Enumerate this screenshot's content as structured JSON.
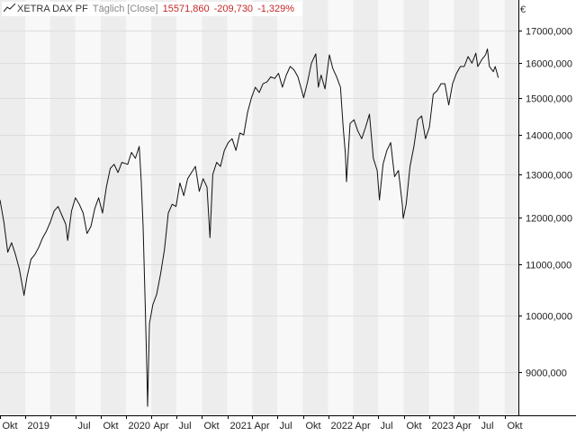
{
  "legend": {
    "name": "XETRA DAX PF",
    "interval": "Täglich [Close]",
    "last": "15571,860",
    "change": "-209,730",
    "change_pct": "-1,329%"
  },
  "currency": "€",
  "colors": {
    "line": "#111111",
    "band_dark": "#ededed",
    "band_light": "#f8f8f8",
    "grid": "#dddddd",
    "axis": "#000000",
    "negative": "#c62828"
  },
  "chart_data": {
    "type": "line",
    "title": "",
    "xlabel": "",
    "ylabel": "",
    "y_scale": "log",
    "ylim": [
      8300,
      18000
    ],
    "xlim": [
      "2018-10-01",
      "2023-11-20"
    ],
    "grid": true,
    "y_ticks": [
      9000,
      10000,
      11000,
      12000,
      13000,
      14000,
      15000,
      16000,
      17000
    ],
    "y_tick_labels": [
      "9000,000",
      "10000,000",
      "11000,000",
      "12000,000",
      "13000,000",
      "14000,000",
      "15000,000",
      "16000,000",
      "17000,000"
    ],
    "x_ticks": [
      {
        "date": "2018-10-01",
        "label": "Okt"
      },
      {
        "date": "2019-01-01",
        "label": "2019"
      },
      {
        "date": "2019-04-01",
        "label": ""
      },
      {
        "date": "2019-07-01",
        "label": "Jul"
      },
      {
        "date": "2019-10-01",
        "label": "Okt"
      },
      {
        "date": "2020-01-01",
        "label": "2020"
      },
      {
        "date": "2020-04-01",
        "label": "Apr"
      },
      {
        "date": "2020-07-01",
        "label": "Jul"
      },
      {
        "date": "2020-10-01",
        "label": "Okt"
      },
      {
        "date": "2021-01-01",
        "label": "2021"
      },
      {
        "date": "2021-04-01",
        "label": "Apr"
      },
      {
        "date": "2021-07-01",
        "label": "Jul"
      },
      {
        "date": "2021-10-01",
        "label": "Okt"
      },
      {
        "date": "2022-01-01",
        "label": "2022"
      },
      {
        "date": "2022-04-01",
        "label": "Apr"
      },
      {
        "date": "2022-07-01",
        "label": "Jul"
      },
      {
        "date": "2022-10-01",
        "label": "Okt"
      },
      {
        "date": "2023-01-01",
        "label": "2023"
      },
      {
        "date": "2023-04-01",
        "label": "Apr"
      },
      {
        "date": "2023-07-01",
        "label": "Jul"
      },
      {
        "date": "2023-10-01",
        "label": "Okt"
      }
    ],
    "series": [
      {
        "values": [
          [
            "2018-10-01",
            12400
          ],
          [
            "2018-10-15",
            11900
          ],
          [
            "2018-10-29",
            11250
          ],
          [
            "2018-11-12",
            11450
          ],
          [
            "2018-11-26",
            11200
          ],
          [
            "2018-12-10",
            10900
          ],
          [
            "2018-12-27",
            10380
          ],
          [
            "2019-01-07",
            10750
          ],
          [
            "2019-01-21",
            11100
          ],
          [
            "2019-02-04",
            11200
          ],
          [
            "2019-02-18",
            11350
          ],
          [
            "2019-03-04",
            11550
          ],
          [
            "2019-03-18",
            11700
          ],
          [
            "2019-04-01",
            11900
          ],
          [
            "2019-04-15",
            12150
          ],
          [
            "2019-04-29",
            12250
          ],
          [
            "2019-05-13",
            12050
          ],
          [
            "2019-05-27",
            11850
          ],
          [
            "2019-06-03",
            11500
          ],
          [
            "2019-06-17",
            12150
          ],
          [
            "2019-07-01",
            12450
          ],
          [
            "2019-07-15",
            12300
          ],
          [
            "2019-07-29",
            12100
          ],
          [
            "2019-08-12",
            11650
          ],
          [
            "2019-08-26",
            11800
          ],
          [
            "2019-09-09",
            12200
          ],
          [
            "2019-09-23",
            12450
          ],
          [
            "2019-10-07",
            12100
          ],
          [
            "2019-10-21",
            12700
          ],
          [
            "2019-11-04",
            13150
          ],
          [
            "2019-11-18",
            13250
          ],
          [
            "2019-12-02",
            13050
          ],
          [
            "2019-12-16",
            13300
          ],
          [
            "2020-01-06",
            13250
          ],
          [
            "2020-01-20",
            13550
          ],
          [
            "2020-02-03",
            13400
          ],
          [
            "2020-02-17",
            13700
          ],
          [
            "2020-02-24",
            12850
          ],
          [
            "2020-03-02",
            11800
          ],
          [
            "2020-03-09",
            10300
          ],
          [
            "2020-03-16",
            8950
          ],
          [
            "2020-03-18",
            8440
          ],
          [
            "2020-03-25",
            9850
          ],
          [
            "2020-04-06",
            10200
          ],
          [
            "2020-04-20",
            10400
          ],
          [
            "2020-05-04",
            10800
          ],
          [
            "2020-05-18",
            11300
          ],
          [
            "2020-06-01",
            12100
          ],
          [
            "2020-06-15",
            12300
          ],
          [
            "2020-06-29",
            12250
          ],
          [
            "2020-07-13",
            12800
          ],
          [
            "2020-07-27",
            12500
          ],
          [
            "2020-08-10",
            12900
          ],
          [
            "2020-08-24",
            13050
          ],
          [
            "2020-09-07",
            13200
          ],
          [
            "2020-09-21",
            12600
          ],
          [
            "2020-10-05",
            12900
          ],
          [
            "2020-10-19",
            12700
          ],
          [
            "2020-10-30",
            11560
          ],
          [
            "2020-11-09",
            13000
          ],
          [
            "2020-11-23",
            13300
          ],
          [
            "2020-12-07",
            13200
          ],
          [
            "2020-12-21",
            13600
          ],
          [
            "2021-01-04",
            13800
          ],
          [
            "2021-01-18",
            13900
          ],
          [
            "2021-02-01",
            13600
          ],
          [
            "2021-02-15",
            14050
          ],
          [
            "2021-03-01",
            14000
          ],
          [
            "2021-03-15",
            14600
          ],
          [
            "2021-03-29",
            15000
          ],
          [
            "2021-04-12",
            15300
          ],
          [
            "2021-04-26",
            15150
          ],
          [
            "2021-05-10",
            15400
          ],
          [
            "2021-05-24",
            15450
          ],
          [
            "2021-06-07",
            15600
          ],
          [
            "2021-06-21",
            15550
          ],
          [
            "2021-07-05",
            15700
          ],
          [
            "2021-07-19",
            15300
          ],
          [
            "2021-08-02",
            15650
          ],
          [
            "2021-08-16",
            15900
          ],
          [
            "2021-08-30",
            15800
          ],
          [
            "2021-09-13",
            15600
          ],
          [
            "2021-09-27",
            15200
          ],
          [
            "2021-10-04",
            15000
          ],
          [
            "2021-10-18",
            15450
          ],
          [
            "2021-11-01",
            16000
          ],
          [
            "2021-11-17",
            16280
          ],
          [
            "2021-11-26",
            15300
          ],
          [
            "2021-12-06",
            15650
          ],
          [
            "2021-12-20",
            15250
          ],
          [
            "2022-01-05",
            16250
          ],
          [
            "2022-01-17",
            15850
          ],
          [
            "2022-01-31",
            15600
          ],
          [
            "2022-02-14",
            15300
          ],
          [
            "2022-02-24",
            14200
          ],
          [
            "2022-03-04",
            13500
          ],
          [
            "2022-03-08",
            12830
          ],
          [
            "2022-03-21",
            14300
          ],
          [
            "2022-04-04",
            14400
          ],
          [
            "2022-04-18",
            14100
          ],
          [
            "2022-05-02",
            13900
          ],
          [
            "2022-05-16",
            14200
          ],
          [
            "2022-05-30",
            14550
          ],
          [
            "2022-06-13",
            13400
          ],
          [
            "2022-06-27",
            13100
          ],
          [
            "2022-07-05",
            12400
          ],
          [
            "2022-07-18",
            13250
          ],
          [
            "2022-08-01",
            13600
          ],
          [
            "2022-08-15",
            13800
          ],
          [
            "2022-08-29",
            12950
          ],
          [
            "2022-09-12",
            13100
          ],
          [
            "2022-09-26",
            12300
          ],
          [
            "2022-09-29",
            11980
          ],
          [
            "2022-10-10",
            12300
          ],
          [
            "2022-10-24",
            13200
          ],
          [
            "2022-11-07",
            13700
          ],
          [
            "2022-11-21",
            14400
          ],
          [
            "2022-12-05",
            14500
          ],
          [
            "2022-12-19",
            13900
          ],
          [
            "2023-01-02",
            14200
          ],
          [
            "2023-01-16",
            15100
          ],
          [
            "2023-01-30",
            15200
          ],
          [
            "2023-02-13",
            15400
          ],
          [
            "2023-02-27",
            15400
          ],
          [
            "2023-03-13",
            14800
          ],
          [
            "2023-03-27",
            15400
          ],
          [
            "2023-04-10",
            15700
          ],
          [
            "2023-04-24",
            15900
          ],
          [
            "2023-05-08",
            15900
          ],
          [
            "2023-05-22",
            16200
          ],
          [
            "2023-06-05",
            16000
          ],
          [
            "2023-06-19",
            16300
          ],
          [
            "2023-06-26",
            15900
          ],
          [
            "2023-07-10",
            16100
          ],
          [
            "2023-07-24",
            16250
          ],
          [
            "2023-07-31",
            16430
          ],
          [
            "2023-08-07",
            15900
          ],
          [
            "2023-08-21",
            15750
          ],
          [
            "2023-08-28",
            15900
          ],
          [
            "2023-09-04",
            15700
          ],
          [
            "2023-09-08",
            15571
          ]
        ]
      }
    ]
  }
}
